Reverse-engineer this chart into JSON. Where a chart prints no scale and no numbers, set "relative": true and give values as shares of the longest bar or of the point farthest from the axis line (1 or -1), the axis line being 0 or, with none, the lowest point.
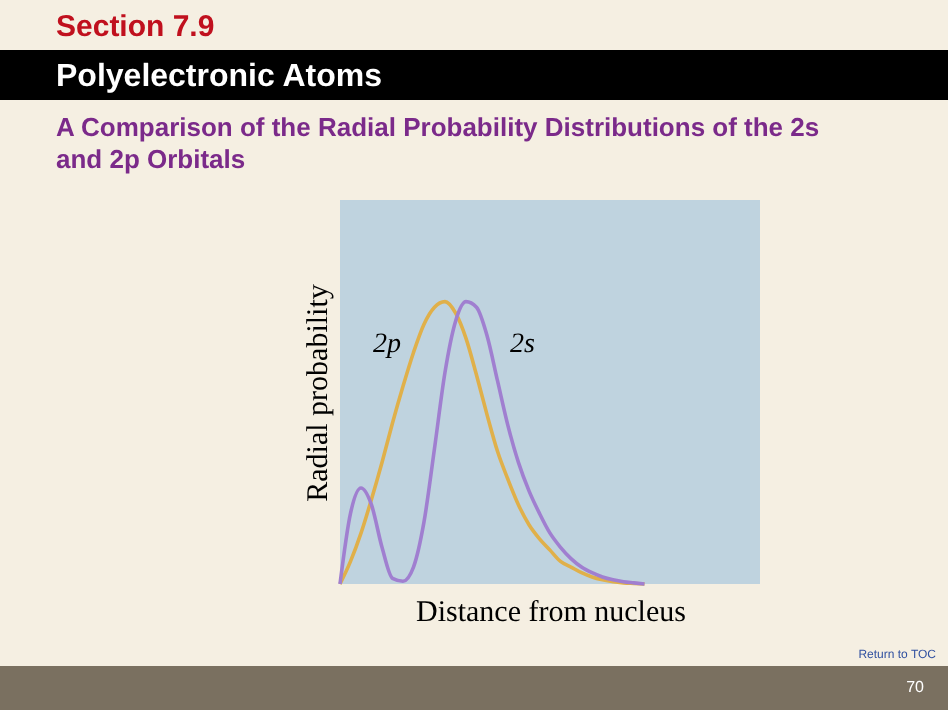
{
  "chart_data": {
    "type": "line",
    "title": "A Comparison of the Radial Probability Distributions of the 2s and 2p Orbitals",
    "xlabel": "Distance from nucleus",
    "ylabel": "Radial probability",
    "relative": true,
    "tick_labels": false,
    "annotations": [
      "Section 7.9",
      "Polyelectronic Atoms",
      "Return to TOC",
      "70"
    ],
    "categories": [
      null,
      null,
      null,
      null,
      null,
      null,
      null,
      null,
      null,
      null,
      null,
      null,
      null,
      null,
      null,
      null,
      null,
      null,
      null,
      null,
      null,
      null,
      null,
      null,
      null,
      null,
      null,
      null,
      null,
      null,
      null,
      null,
      null,
      null,
      null,
      null,
      null,
      null,
      null,
      null,
      null
    ],
    "series": [
      {
        "name": "2p",
        "color": "#e0b04a",
        "values": [
          0,
          0.08,
          0.18,
          0.3,
          0.43,
          0.57,
          0.7,
          0.82,
          0.92,
          0.98,
          1.0,
          0.96,
          0.87,
          0.74,
          0.6,
          0.47,
          0.37,
          0.28,
          0.21,
          0.16,
          0.12,
          0.08,
          0.06,
          0.04,
          0.025,
          0.015,
          0.008,
          0.004,
          0.002,
          0,
          null,
          null,
          null,
          null,
          null,
          null,
          null,
          null,
          null,
          null,
          null
        ]
      },
      {
        "name": "2s",
        "color": "#a07fd0",
        "values": [
          0,
          0.25,
          0.34,
          0.28,
          0.13,
          0.02,
          0.01,
          0.06,
          0.22,
          0.48,
          0.75,
          0.93,
          1.0,
          0.98,
          0.88,
          0.72,
          0.56,
          0.43,
          0.33,
          0.25,
          0.18,
          0.13,
          0.09,
          0.06,
          0.04,
          0.025,
          0.015,
          0.008,
          0.004,
          0,
          null,
          null,
          null,
          null,
          null,
          null,
          null,
          null,
          null,
          null,
          null
        ]
      }
    ]
  }
}
